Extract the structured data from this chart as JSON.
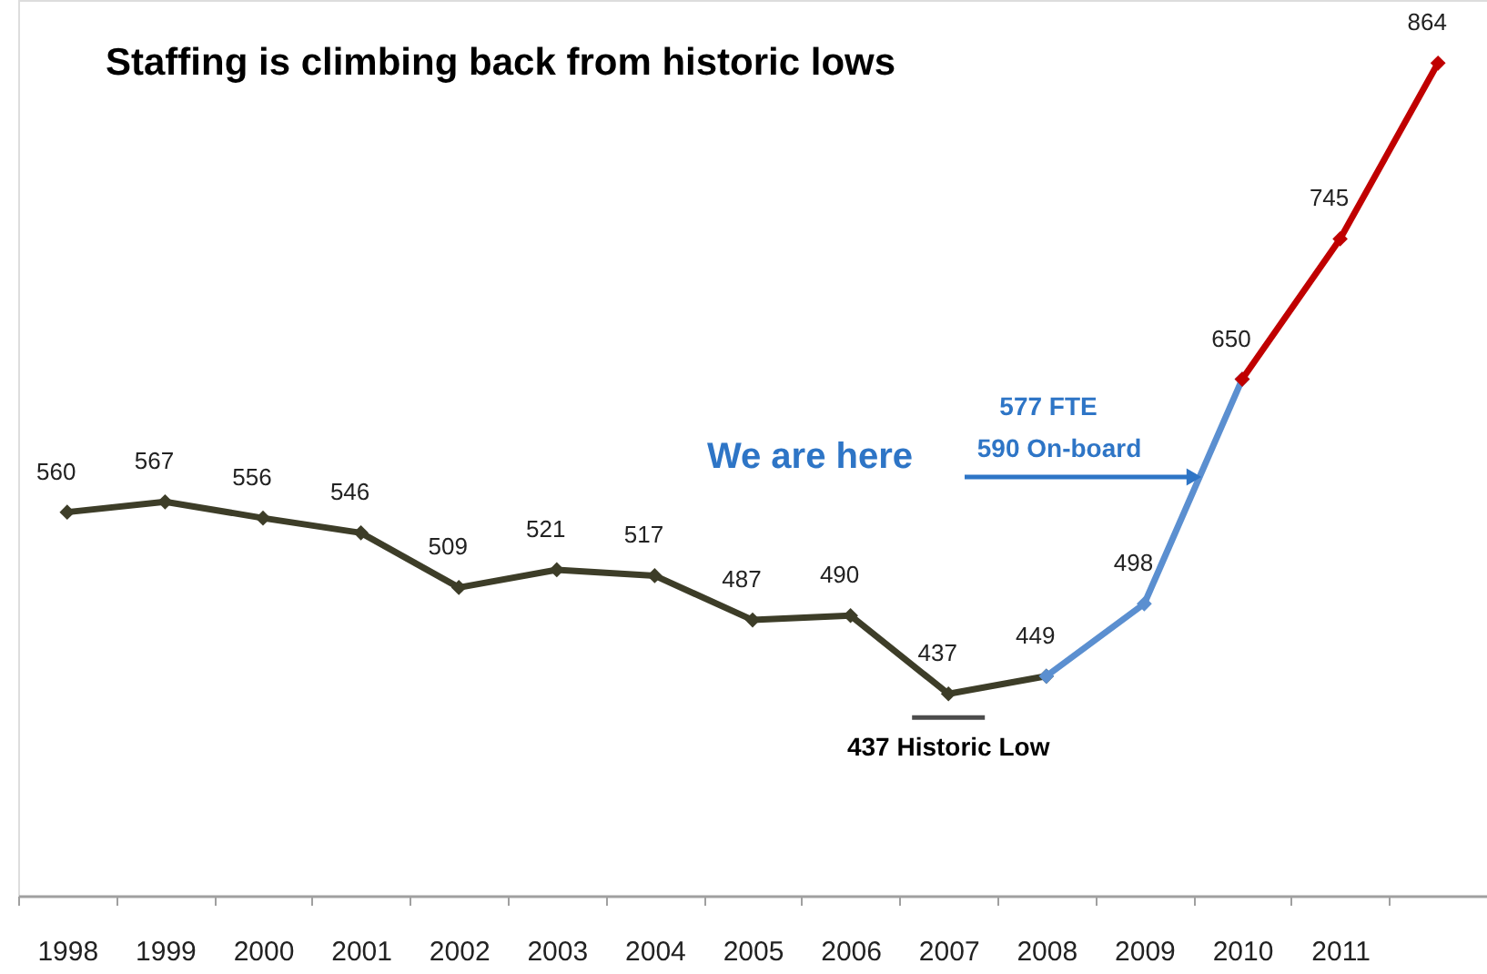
{
  "chart_data": {
    "type": "line",
    "title": "Staffing is climbing back from historic lows",
    "categories": [
      "1998",
      "1999",
      "2000",
      "2001",
      "2002",
      "2003",
      "2004",
      "2005",
      "2006",
      "2007",
      "2008",
      "2009",
      "2010",
      "2011",
      null
    ],
    "series": [
      {
        "color": "#3d3d28",
        "values": [
          560,
          567,
          556,
          546,
          509,
          521,
          517,
          487,
          490,
          437,
          449,
          null,
          null,
          null,
          null
        ],
        "value_labels": [
          "560",
          "567",
          "556",
          "546",
          "509",
          "521",
          "517",
          "487",
          "490",
          "437",
          "449",
          null,
          null,
          null,
          null
        ]
      },
      {
        "color": "#5b8fd0",
        "values": [
          null,
          null,
          null,
          null,
          null,
          null,
          null,
          null,
          null,
          null,
          449,
          498,
          650,
          null,
          null
        ],
        "value_labels": [
          null,
          null,
          null,
          null,
          null,
          null,
          null,
          null,
          null,
          null,
          null,
          "498",
          "650",
          null,
          null
        ]
      },
      {
        "color": "#c00000",
        "values": [
          null,
          null,
          null,
          null,
          null,
          null,
          null,
          null,
          null,
          null,
          null,
          null,
          650,
          745,
          864
        ],
        "value_labels": [
          null,
          null,
          null,
          null,
          null,
          null,
          null,
          null,
          null,
          null,
          null,
          null,
          null,
          "745",
          "864"
        ]
      }
    ],
    "marker": "diamond",
    "line_style": "solid",
    "grid": false,
    "tick_labels": "x",
    "annotations": [
      "We are here",
      "577 FTE",
      "590 On-board",
      {
        "text": "437 Historic Low",
        "x": "2007",
        "y": 437
      }
    ]
  }
}
